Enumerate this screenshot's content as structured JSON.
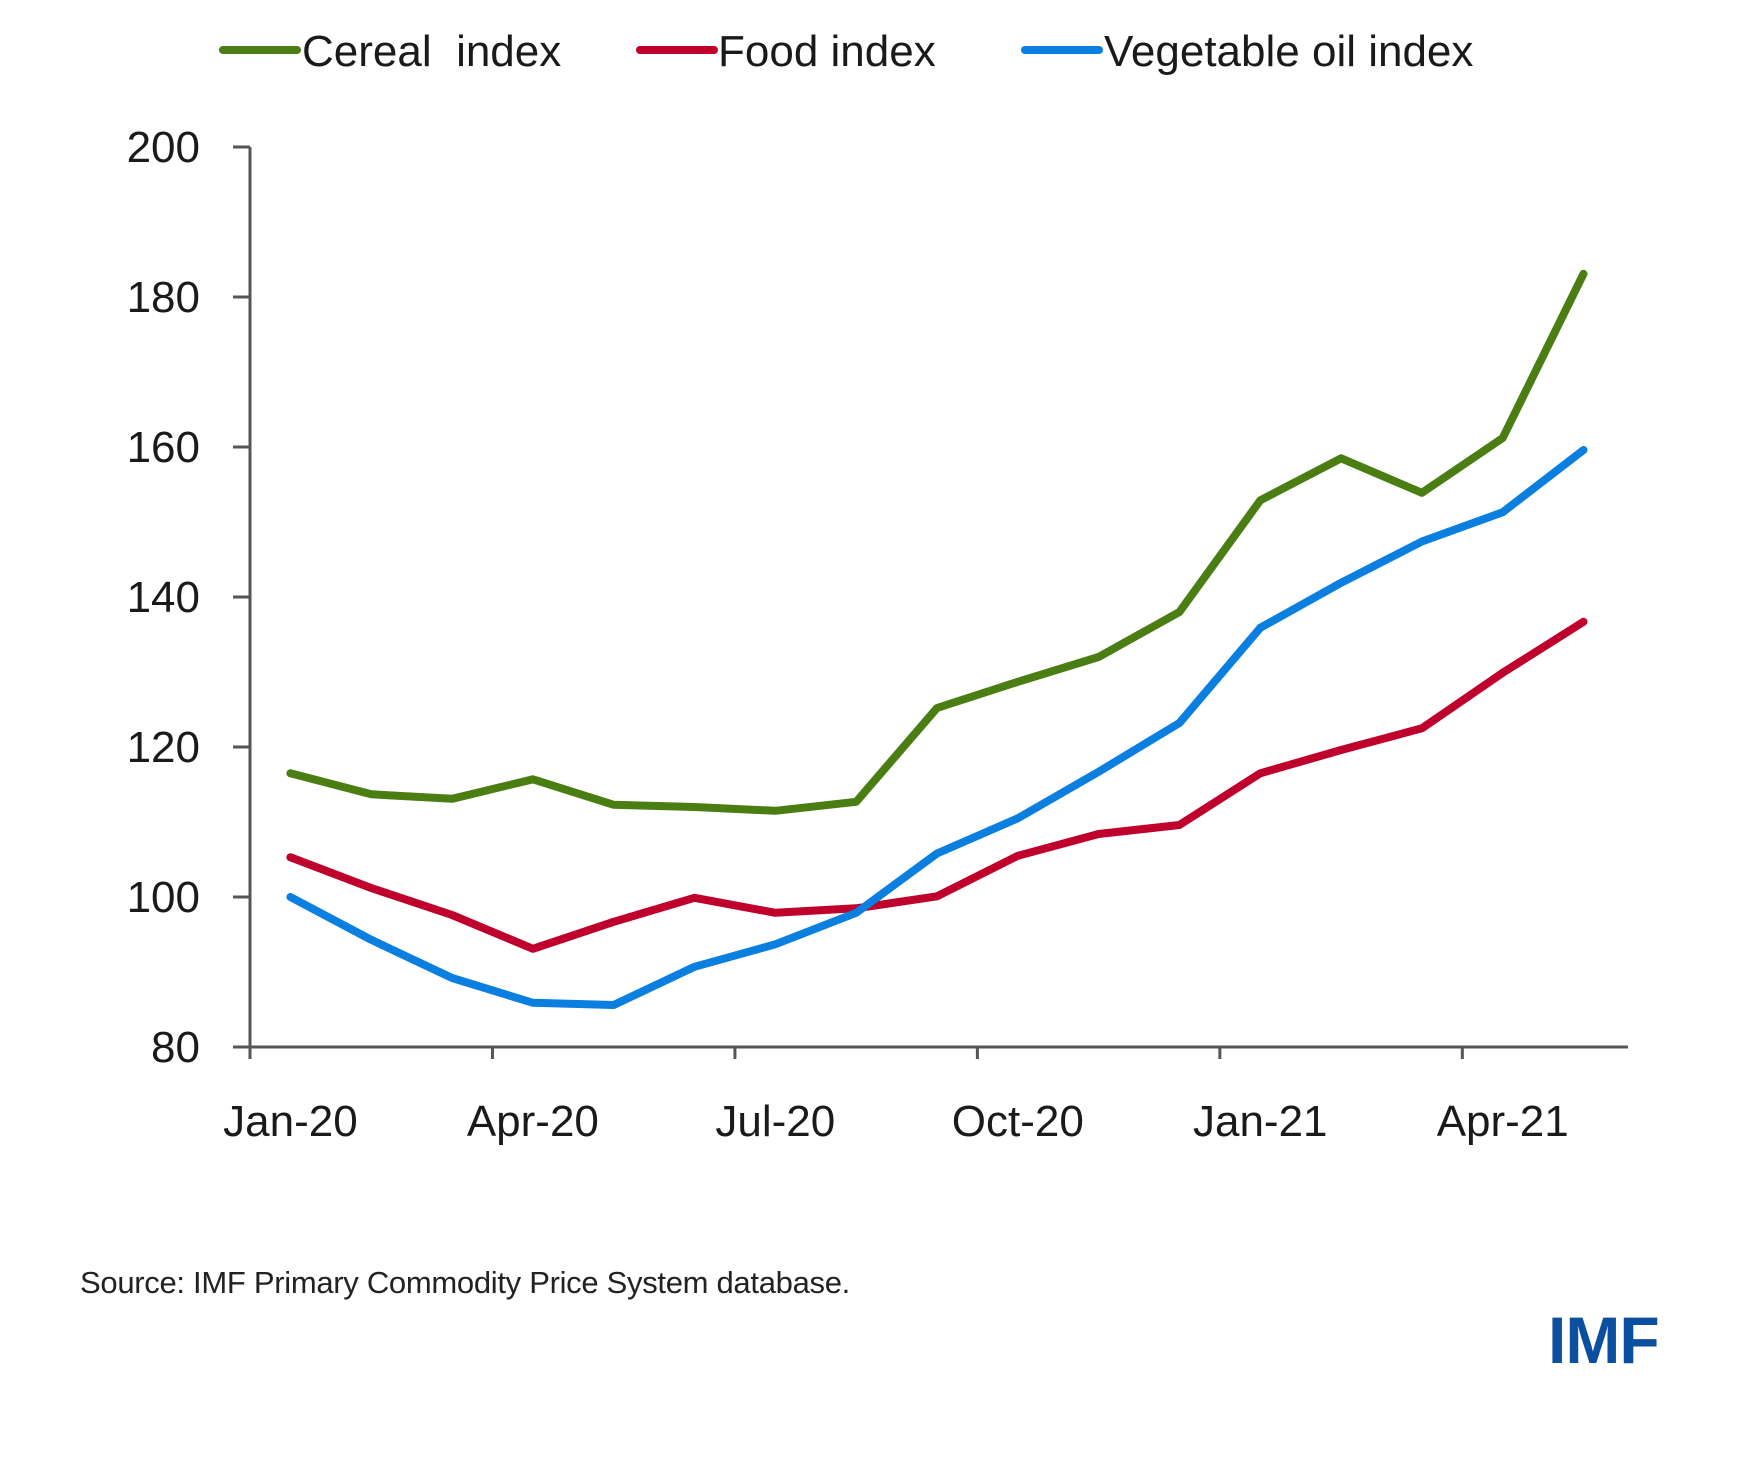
{
  "chart_data": {
    "type": "line",
    "title": "",
    "xlabel": "",
    "ylabel": "",
    "x": [
      "Jan-20",
      "Feb-20",
      "Mar-20",
      "Apr-20",
      "May-20",
      "Jun-20",
      "Jul-20",
      "Aug-20",
      "Sep-20",
      "Oct-20",
      "Nov-20",
      "Dec-20",
      "Jan-21",
      "Feb-21",
      "Mar-21",
      "Apr-21",
      "May-21"
    ],
    "x_tick_labels": [
      "Jan-20",
      "Apr-20",
      "Jul-20",
      "Oct-20",
      "Jan-21",
      "Apr-21"
    ],
    "y_ticks": [
      80,
      100,
      120,
      140,
      160,
      180,
      200
    ],
    "ylim": [
      80,
      200
    ],
    "grid": false,
    "legend_position": "top",
    "series": [
      {
        "name": "Cereal  index",
        "color": "#4a7d12",
        "values": [
          116.5,
          113.7,
          113.1,
          115.7,
          112.3,
          112.0,
          111.5,
          112.7,
          125.2,
          128.7,
          132.0,
          138.0,
          152.9,
          158.5,
          153.9,
          161.2,
          183.1
        ]
      },
      {
        "name": "Food index",
        "color": "#c0002c",
        "values": [
          105.3,
          101.2,
          97.6,
          93.1,
          96.7,
          99.9,
          97.9,
          98.5,
          100.1,
          105.5,
          108.4,
          109.6,
          116.5,
          119.6,
          122.5,
          129.9,
          136.7
        ]
      },
      {
        "name": "Vegetable oil index",
        "color": "#0a7fe0",
        "values": [
          100.0,
          94.3,
          89.2,
          85.9,
          85.6,
          90.7,
          93.7,
          97.9,
          105.8,
          110.5,
          116.7,
          123.2,
          135.9,
          141.9,
          147.4,
          151.3,
          159.6
        ]
      }
    ]
  },
  "footer": {
    "source": "Source: IMF Primary Commodity Price System database.",
    "logo": "IMF"
  }
}
